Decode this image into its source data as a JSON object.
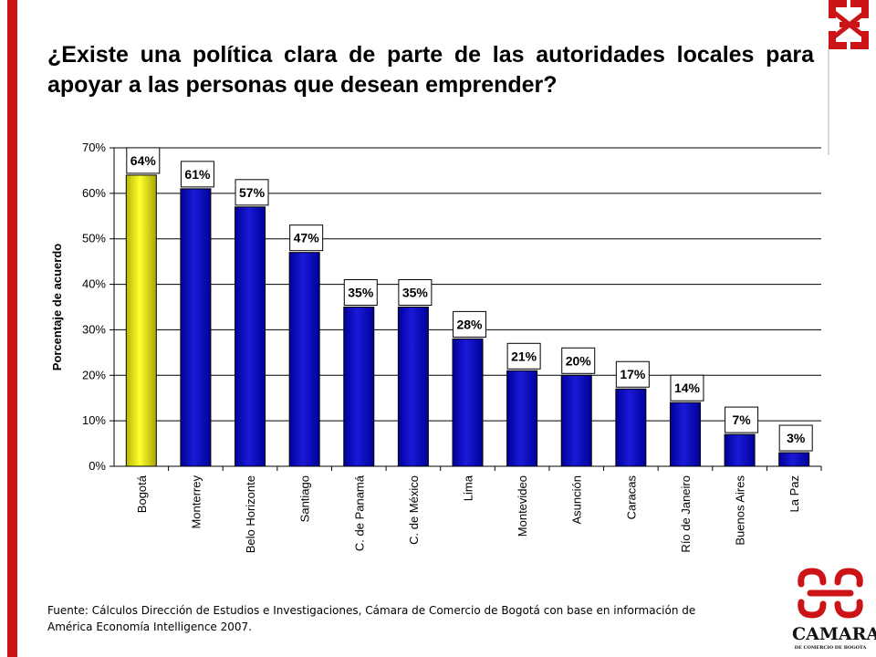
{
  "title": "¿Existe una política clara de parte de las autoridades locales para apoyar a las personas que desean emprender?",
  "footnote": "Fuente: Cálculos Dirección de Estudios e Investigaciones, Cámara de Comercio de Bogotá con base en información de América Economía Intelligence 2007.",
  "brand": {
    "name": "CAMARA",
    "subtitle": "DE COMERCIO DE BOGOTA"
  },
  "colors": {
    "accent": "#cc1417",
    "highlight_bar": "#e8e800",
    "bar": "#1a1ad8",
    "bar_dark": "#00009a"
  },
  "chart_data": {
    "type": "bar",
    "ylabel": "Porcentaje de acuerdo",
    "xlabel": "",
    "ylim": [
      0,
      70
    ],
    "yticks": [
      "0%",
      "10%",
      "20%",
      "30%",
      "40%",
      "50%",
      "60%",
      "70%"
    ],
    "grid": true,
    "categories": [
      "Bogotá",
      "Monterrey",
      "Belo Horizonte",
      "Santiago",
      "C. de Panamá",
      "C. de México",
      "Lima",
      "Montevideo",
      "Asunción",
      "Caracas",
      "Río de Janeiro",
      "Buenos Aires",
      "La Paz"
    ],
    "values": [
      64,
      61,
      57,
      47,
      35,
      35,
      28,
      21,
      20,
      17,
      14,
      7,
      3
    ],
    "labels": [
      "64%",
      "61%",
      "57%",
      "47%",
      "35%",
      "35%",
      "28%",
      "21%",
      "20%",
      "17%",
      "14%",
      "7%",
      "3%"
    ],
    "highlight": "Bogotá"
  }
}
